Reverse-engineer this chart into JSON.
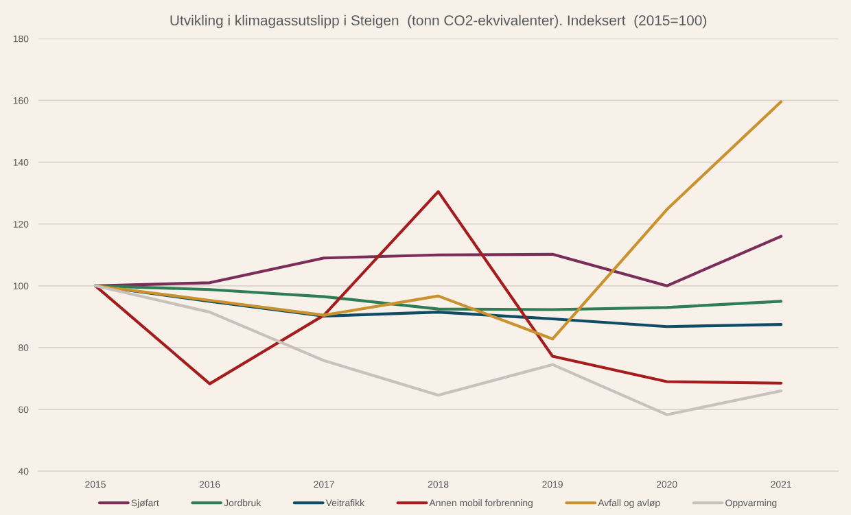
{
  "chart_data": {
    "type": "line",
    "title": "Utvikling i klimagassutslipp i Steigen  (tonn CO2-ekvivalenter). Indeksert  (2015=100)",
    "categories": [
      "2015",
      "2016",
      "2017",
      "2018",
      "2019",
      "2020",
      "2021"
    ],
    "series": [
      {
        "name": "Sjøfart",
        "color": "#7b2d5a",
        "values": [
          100,
          101,
          109,
          110,
          110.2,
          100,
          116
        ]
      },
      {
        "name": "Jordbruk",
        "color": "#2e7d55",
        "values": [
          100,
          98.8,
          96.5,
          92.5,
          92.3,
          93,
          95
        ]
      },
      {
        "name": "Veitrafikk",
        "color": "#0f4c63",
        "values": [
          100,
          95,
          90.2,
          91.5,
          89.3,
          86.8,
          87.5
        ]
      },
      {
        "name": "Annen mobil forbrenning",
        "color": "#a51c1c",
        "values": [
          100,
          68.3,
          90.5,
          130.5,
          77.2,
          69,
          68.5
        ]
      },
      {
        "name": "Avfall og avløp",
        "color": "#c9922e",
        "values": [
          100,
          95.3,
          90.5,
          96.7,
          82.8,
          124.7,
          159.6
        ]
      },
      {
        "name": "Oppvarming",
        "color": "#c9c1bb",
        "values": [
          100,
          91.5,
          75.8,
          64.6,
          74.5,
          58.3,
          66
        ]
      }
    ],
    "ylim": [
      40,
      180
    ],
    "yticks": [
      40,
      60,
      80,
      100,
      120,
      140,
      160,
      180
    ],
    "grid": "y",
    "legend": "bottom",
    "marker": "none",
    "line_style": "solid"
  }
}
